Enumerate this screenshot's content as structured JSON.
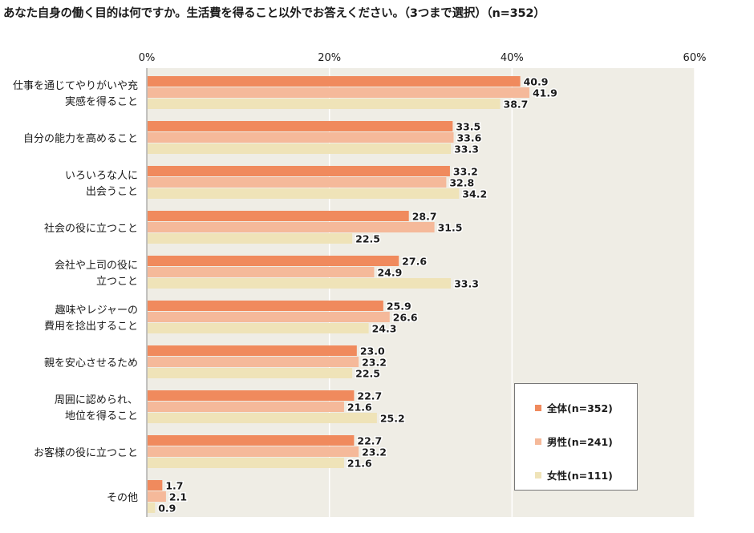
{
  "chart_data": {
    "type": "bar",
    "orientation": "horizontal",
    "title": "あなた自身の働く目的は何ですか。生活費を得ること以外でお答えください。（3つまで選択）（n=352）",
    "xlim": [
      0,
      60
    ],
    "xticks": [
      0,
      20,
      40,
      60
    ],
    "xtick_labels": [
      "0%",
      "20%",
      "40%",
      "60%"
    ],
    "grid": true,
    "legend_position": "bottom-right",
    "categories": [
      [
        "仕事を通じてやりがいや充",
        "実感を得ること"
      ],
      [
        "自分の能力を高めること"
      ],
      [
        "いろいろな人に",
        "出会うこと"
      ],
      [
        "社会の役に立つこと"
      ],
      [
        "会社や上司の役に",
        "立つこと"
      ],
      [
        "趣味やレジャーの",
        "費用を捻出すること"
      ],
      [
        "親を安心させるため"
      ],
      [
        "周囲に認められ、",
        "地位を得ること"
      ],
      [
        "お客様の役に立つこと"
      ],
      [
        "その他"
      ]
    ],
    "series": [
      {
        "name": "全体(n=352)",
        "color": "#f08a5d",
        "values": [
          40.9,
          33.5,
          33.2,
          28.7,
          27.6,
          25.9,
          23.0,
          22.7,
          22.7,
          1.7
        ],
        "labels": [
          "40.9",
          "33.5",
          "33.2",
          "28.7",
          "27.6",
          "25.9",
          "23.0",
          "22.7",
          "22.7",
          "1.7"
        ]
      },
      {
        "name": "男性(n=241)",
        "color": "#f5b99a",
        "values": [
          41.9,
          33.6,
          32.8,
          31.5,
          24.9,
          26.6,
          23.2,
          21.6,
          23.2,
          2.1
        ],
        "labels": [
          "41.9",
          "33.6",
          "32.8",
          "31.5",
          "24.9",
          "26.6",
          "23.2",
          "21.6",
          "23.2",
          "2.1"
        ]
      },
      {
        "name": "女性(n=111)",
        "color": "#efe3b8",
        "values": [
          38.7,
          33.3,
          34.2,
          22.5,
          33.3,
          24.3,
          22.5,
          25.2,
          21.6,
          0.9
        ],
        "labels": [
          "38.7",
          "33.3",
          "34.2",
          "22.5",
          "33.3",
          "24.3",
          "22.5",
          "25.2",
          "21.6",
          "0.9"
        ]
      }
    ]
  },
  "colors": {
    "plot_background": "#efede5",
    "grid": "#ffffff",
    "axis": "#888888"
  }
}
